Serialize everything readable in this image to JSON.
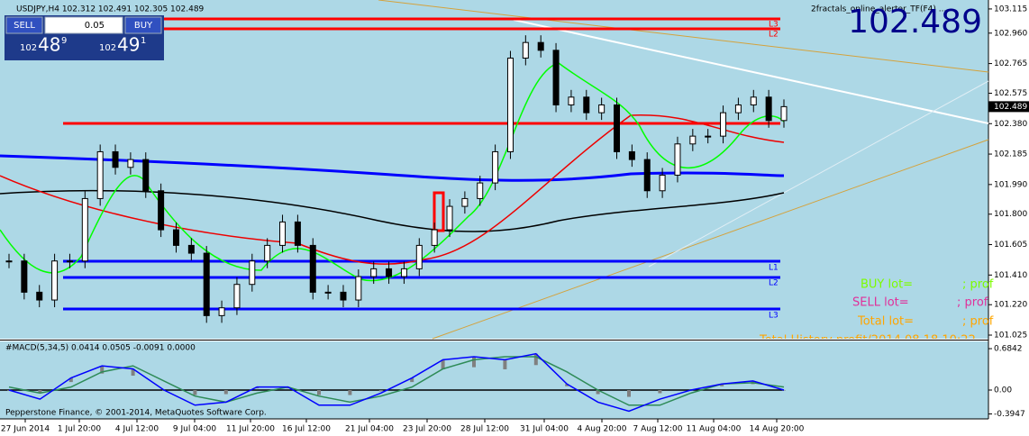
{
  "window": {
    "title": "USDJPY,H4  102.312 102.491 102.305 102.489",
    "indicator": "2fractals_online_alerter_TF(F4) ...",
    "price_display": "102.489"
  },
  "trade_panel": {
    "sell": "SELL",
    "buy": "BUY",
    "lot": "0.05",
    "sell_big": "102",
    "sell_mid": "48",
    "sell_sup": "9",
    "buy_big": "102",
    "buy_mid": "49",
    "buy_sup": "1"
  },
  "chart": {
    "type": "candlestick",
    "ylim": [
      101.002,
      103.155
    ],
    "yticks": [
      103.115,
      {
        "value": 102.96,
        "label": "102.960"
      },
      102.765,
      102.575,
      {
        "value": 102.38,
        "label": "102.380"
      },
      102.185,
      {
        "value": 101.99,
        "label": "101.990"
      },
      {
        "value": 101.8,
        "label": "101.800"
      },
      101.605,
      {
        "value": 101.41,
        "label": "101.410"
      },
      {
        "value": 101.22,
        "label": "101.220"
      },
      101.025
    ],
    "current_price": 102.489,
    "current_price_label": "102.489",
    "closes": [
      101.5,
      101.3,
      101.25,
      101.5,
      101.5,
      101.9,
      102.2,
      102.1,
      102.15,
      101.95,
      101.7,
      101.6,
      101.55,
      101.15,
      101.2,
      101.35,
      101.5,
      101.6,
      101.75,
      101.6,
      101.3,
      101.3,
      101.25,
      101.4,
      101.45,
      101.4,
      101.45,
      101.6,
      101.7,
      101.85,
      101.9,
      102.0,
      102.2,
      102.8,
      102.9,
      102.85,
      102.5,
      102.55,
      102.45,
      102.5,
      102.2,
      102.15,
      101.95,
      102.05,
      102.25,
      102.3,
      102.3,
      102.45,
      102.5,
      102.55,
      102.4,
      102.489
    ],
    "level_labels": [
      "L3",
      "L2",
      "L1",
      "L2",
      "L3"
    ],
    "stats": {
      "buy": "BUY  lot=",
      "sell": "SELL  lot=",
      "total": "Total  lot=",
      "prof": "; prof",
      "history": "Total History profit/2014.08.18 10:22"
    }
  },
  "macd": {
    "label": "#MACD(5,34,5) 0.0414 0.0505 -0.0091 0.0000",
    "ylim": [
      -0.432,
      0.789
    ],
    "yticks": [
      0.6842,
      {
        "value": 0,
        "label": "0.00"
      },
      -0.3947
    ],
    "main": [
      0.0,
      -0.15,
      0.2,
      0.4,
      0.35,
      0.0,
      -0.25,
      -0.2,
      0.05,
      0.05,
      -0.25,
      -0.25,
      -0.05,
      0.2,
      0.5,
      0.55,
      0.5,
      0.6,
      0.1,
      -0.2,
      -0.35,
      -0.15,
      0.0,
      0.1,
      0.15,
      0.0
    ],
    "signal": [
      0.05,
      -0.05,
      0.05,
      0.3,
      0.4,
      0.15,
      -0.1,
      -0.2,
      -0.05,
      0.05,
      -0.1,
      -0.2,
      -0.1,
      0.05,
      0.35,
      0.5,
      0.55,
      0.55,
      0.3,
      0.0,
      -0.25,
      -0.25,
      -0.05,
      0.1,
      0.12,
      0.05
    ]
  },
  "x_labels": [
    "27 Jun 2014",
    "1 Jul 20:00",
    "4 Jul 12:00",
    "9 Jul 04:00",
    "11 Jul 20:00",
    "16 Jul 12:00",
    "21 Jul 04:00",
    "23 Jul 20:00",
    "28 Jul 12:00",
    "31 Jul 04:00",
    "4 Aug 20:00",
    "7 Aug 12:00",
    "11 Aug 04:00",
    "14 Aug 20:00"
  ],
  "copyright": "Pepperstone Finance, © 2001-2014, MetaQuotes Software Corp."
}
